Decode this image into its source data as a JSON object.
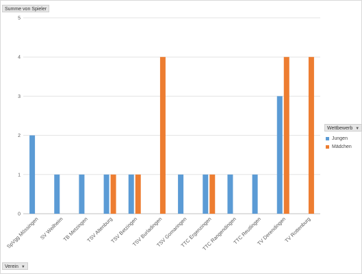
{
  "field_buttons": {
    "values_field": "Summe von Spieler",
    "row_field": "Verein",
    "legend_field": "Wettbewerb"
  },
  "legend": {
    "items": [
      {
        "name": "Jungen",
        "color": "#5b9bd5"
      },
      {
        "name": "Mädchen",
        "color": "#ed7d31"
      }
    ]
  },
  "chart_data": {
    "type": "bar",
    "categories": [
      "SpVgg Mössingen",
      "SV Weilheim",
      "TB Metzingen",
      "TSV Altenburg",
      "TSV Betzingen",
      "TSV Burladingen",
      "TSV Gomaringen",
      "TTC Ergenzingen",
      "TTC Rangendingen",
      "TTC Reutlingen",
      "TV Derendingen",
      "TV Rottenburg"
    ],
    "series": [
      {
        "name": "Jungen",
        "color": "#5b9bd5",
        "values": [
          2,
          1,
          1,
          1,
          1,
          null,
          1,
          1,
          1,
          1,
          3,
          null
        ]
      },
      {
        "name": "Mädchen",
        "color": "#ed7d31",
        "values": [
          null,
          null,
          null,
          1,
          1,
          4,
          null,
          1,
          null,
          null,
          4,
          4
        ]
      }
    ],
    "yticks": [
      0,
      1,
      2,
      3,
      4,
      5
    ],
    "ylim": [
      0,
      5
    ],
    "grid": true,
    "legend_position": "right"
  }
}
